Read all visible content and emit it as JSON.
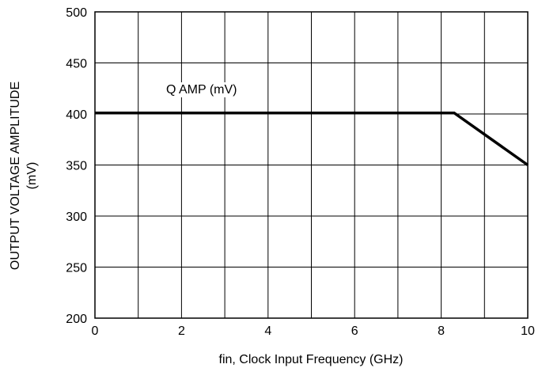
{
  "chart_data": {
    "type": "line",
    "title": "",
    "xlabel": "fin, Clock Input Frequency (GHz)",
    "ylabel_line1": "OUTPUT VOLTAGE AMPLITUDE",
    "ylabel_line2": "(mV)",
    "xlim": [
      0,
      10
    ],
    "ylim": [
      200,
      500
    ],
    "x_ticks": [
      0,
      2,
      4,
      6,
      8,
      10
    ],
    "y_ticks": [
      200,
      250,
      300,
      350,
      400,
      450,
      500
    ],
    "x_tick_labels": [
      "0",
      "2",
      "4",
      "6",
      "8",
      "10"
    ],
    "y_tick_labels": [
      "200",
      "250",
      "300",
      "350",
      "400",
      "450",
      "500"
    ],
    "x_grid_step": 1,
    "y_grid_step": 50,
    "grid": true,
    "series": [
      {
        "name": "Q AMP (mV)",
        "x": [
          0,
          8.3,
          10
        ],
        "y": [
          401,
          401,
          350
        ]
      }
    ]
  }
}
